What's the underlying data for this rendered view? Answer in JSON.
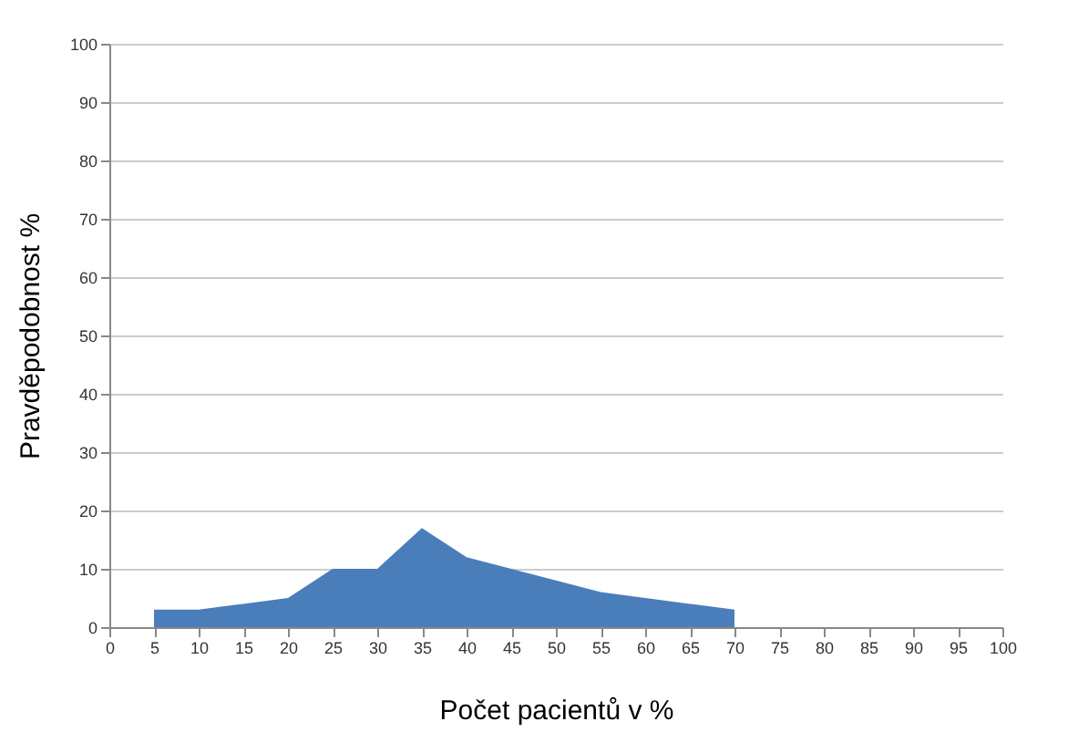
{
  "chart_data": {
    "type": "area",
    "xlabel": "Počet pacientů v %",
    "ylabel": "Pravděpodobnost %",
    "x": [
      5,
      10,
      15,
      20,
      25,
      30,
      35,
      40,
      45,
      50,
      55,
      60,
      65,
      70
    ],
    "series": [
      {
        "color": "#4a7ebb",
        "values": [
          3,
          3,
          4,
          5,
          10,
          10,
          17,
          12,
          10,
          8,
          6,
          5,
          4,
          3
        ]
      }
    ],
    "xlim": [
      0,
      100
    ],
    "xticks": [
      0,
      5,
      10,
      15,
      20,
      25,
      30,
      35,
      40,
      45,
      50,
      55,
      60,
      65,
      70,
      75,
      80,
      85,
      90,
      95,
      100
    ],
    "ylim": [
      0,
      100
    ],
    "yticks": [
      0,
      10,
      20,
      30,
      40,
      50,
      60,
      70,
      80,
      90,
      100
    ],
    "grid": "y"
  }
}
